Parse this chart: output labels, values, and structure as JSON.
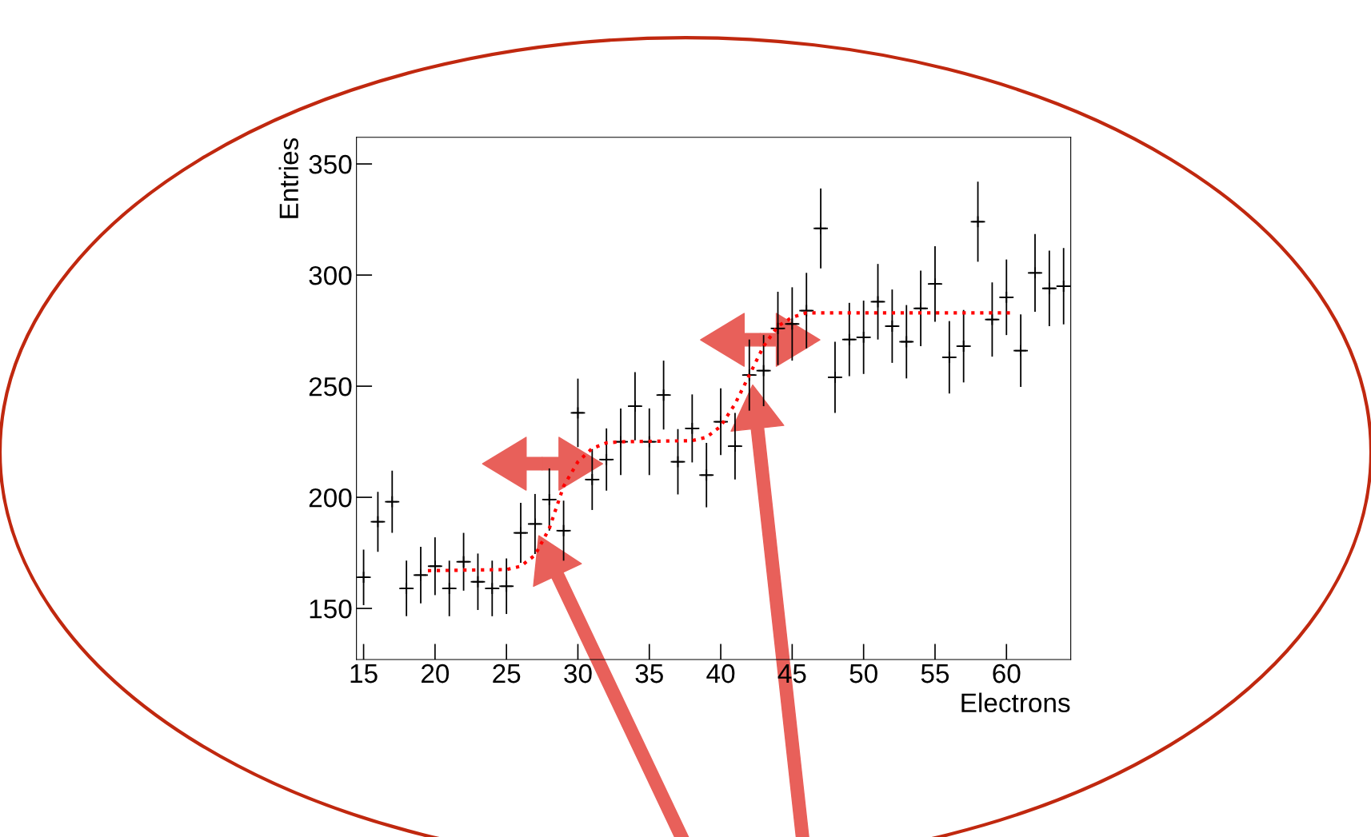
{
  "chart_data": {
    "type": "scatter",
    "xlabel": "Electrons",
    "ylabel": "Entries",
    "xlim": [
      14.5,
      64.5
    ],
    "ylim": [
      127,
      362
    ],
    "xticks": [
      15,
      20,
      25,
      30,
      35,
      40,
      45,
      50,
      55,
      60
    ],
    "yticks": [
      150,
      200,
      250,
      300,
      350
    ],
    "grid": false,
    "legend": false,
    "series": [
      {
        "color": "#000000",
        "marker": "cross",
        "x": [
          15,
          16,
          17,
          18,
          19,
          20,
          21,
          22,
          23,
          24,
          25,
          26,
          27,
          28,
          29,
          30,
          31,
          32,
          33,
          34,
          35,
          36,
          37,
          38,
          39,
          40,
          41,
          42,
          43,
          44,
          45,
          46,
          47,
          48,
          49,
          50,
          51,
          52,
          53,
          54,
          55,
          56,
          57,
          58,
          59,
          60,
          61,
          62,
          63,
          64
        ],
        "values": [
          164,
          189,
          198,
          159,
          165,
          169,
          159,
          171,
          162,
          159,
          160,
          184,
          188,
          199,
          185,
          238,
          208,
          217,
          225,
          241,
          225,
          246,
          216,
          231,
          210,
          234,
          223,
          255,
          257,
          276,
          278,
          284,
          321,
          254,
          271,
          272,
          288,
          277,
          270,
          285,
          296,
          263,
          268,
          324,
          280,
          290,
          266,
          301,
          294,
          295
        ],
        "errors": [
          12.5,
          13.5,
          14,
          12.5,
          12.7,
          13,
          12.5,
          13,
          12.7,
          12.5,
          12.5,
          13.5,
          13.5,
          14,
          13.5,
          15.4,
          13.7,
          14,
          15,
          15.3,
          15,
          15.5,
          14.7,
          15.3,
          14.5,
          15,
          15,
          16,
          16,
          16.5,
          16.5,
          17,
          18,
          16,
          16.5,
          16.5,
          17,
          16.5,
          16.5,
          17,
          17,
          16.3,
          16.3,
          18,
          16.7,
          17,
          16.3,
          17.5,
          17,
          17.2
        ],
        "xerrors": [
          0.5,
          0.5,
          0.5,
          0.5,
          0.5,
          0.5,
          0.5,
          0.5,
          0.5,
          0.5,
          0.5,
          0.5,
          0.5,
          0.5,
          0.5,
          0.5,
          0.5,
          0.5,
          0.5,
          0.5,
          0.5,
          0.5,
          0.5,
          0.5,
          0.5,
          0.5,
          0.5,
          0.5,
          0.5,
          0.5,
          0.5,
          0.5,
          0.5,
          0.5,
          0.5,
          0.5,
          0.5,
          0.5,
          0.5,
          0.5,
          0.5,
          0.5,
          0.5,
          0.5,
          0.5,
          0.5,
          0.5,
          0.5,
          0.5,
          0.5
        ]
      },
      {
        "type": "line",
        "color": "#ff0000",
        "line_style": "dotted",
        "marker": "none",
        "x": [
          19.5,
          25,
          26,
          27,
          28,
          29,
          30,
          31,
          32,
          33,
          38,
          39,
          40,
          41,
          42,
          43,
          44,
          45,
          46,
          48,
          60.5
        ],
        "values": [
          167,
          167.5,
          169,
          174,
          186,
          205,
          216,
          222,
          224.5,
          225,
          225.5,
          227,
          232,
          242,
          255,
          268,
          277,
          281,
          283,
          283,
          283
        ]
      }
    ]
  }
}
